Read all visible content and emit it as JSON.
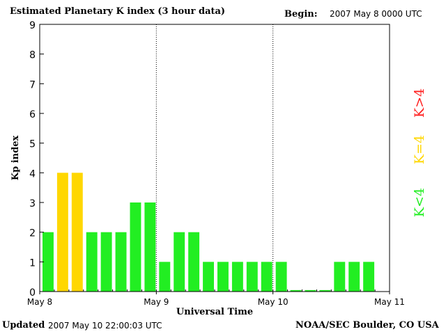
{
  "header": {
    "title": "Estimated Planetary K index (3 hour data)",
    "begin_label": "Begin:",
    "begin_value": "2007 May 8 0000 UTC"
  },
  "footer": {
    "updated_label": "Updated",
    "updated_value": "2007 May 10 22:00:03 UTC",
    "credit": "NOAA/SEC Boulder, CO USA"
  },
  "legend": {
    "high": {
      "label": "K>4",
      "color": "#ff2020"
    },
    "mid": {
      "label": "K=4",
      "color": "#ffd700"
    },
    "low": {
      "label": "K<4",
      "color": "#22ee22"
    }
  },
  "chart_data": {
    "type": "bar",
    "title": "Estimated Planetary K index (3 hour data)",
    "xlabel": "Universal Time",
    "ylabel": "Kp index",
    "ylim": [
      0,
      9
    ],
    "y_ticks": [
      0,
      1,
      2,
      3,
      4,
      5,
      6,
      7,
      8,
      9
    ],
    "x_day_labels": [
      "May 8",
      "May 9",
      "May 10",
      "May 11"
    ],
    "interval_hours": 3,
    "day_separators": "dotted",
    "values": [
      2,
      4,
      4,
      2,
      2,
      2,
      3,
      3,
      1,
      2,
      2,
      1,
      1,
      1,
      1,
      1,
      1,
      0.05,
      0.05,
      0.05,
      1,
      1,
      1
    ],
    "colors": {
      "low": "#22ee22",
      "mid": "#ffd700",
      "high": "#ff2020"
    }
  }
}
